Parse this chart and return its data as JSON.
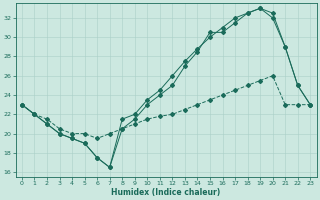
{
  "xlabel": "Humidex (Indice chaleur)",
  "bg_color": "#cce8e0",
  "line_color": "#1a6b5a",
  "xlim": [
    -0.5,
    23.5
  ],
  "ylim": [
    15.5,
    33.5
  ],
  "xticks": [
    0,
    1,
    2,
    3,
    4,
    5,
    6,
    7,
    8,
    9,
    10,
    11,
    12,
    13,
    14,
    15,
    16,
    17,
    18,
    19,
    20,
    21,
    22,
    23
  ],
  "yticks": [
    16,
    18,
    20,
    22,
    24,
    26,
    28,
    30,
    32
  ],
  "line1_x": [
    0,
    1,
    2,
    3,
    4,
    5,
    6,
    7,
    8,
    9,
    10,
    11,
    12,
    13,
    14,
    15,
    16,
    17,
    18,
    19,
    20,
    21,
    22,
    23
  ],
  "line1_y": [
    23.0,
    22.0,
    21.0,
    20.0,
    19.5,
    19.0,
    17.5,
    16.5,
    20.5,
    21.5,
    23.0,
    24.0,
    25.0,
    27.0,
    28.5,
    30.5,
    30.5,
    31.5,
    32.5,
    33.0,
    32.5,
    29.0,
    25.0,
    23.0
  ],
  "line2_x": [
    0,
    1,
    2,
    3,
    4,
    5,
    6,
    7,
    8,
    9,
    10,
    11,
    12,
    13,
    14,
    15,
    16,
    17,
    18,
    19,
    20,
    21,
    22,
    23
  ],
  "line2_y": [
    23.0,
    22.0,
    21.5,
    20.5,
    20.0,
    20.0,
    19.5,
    20.0,
    20.5,
    21.0,
    21.5,
    21.8,
    22.0,
    22.5,
    23.0,
    23.5,
    24.0,
    24.5,
    25.0,
    25.5,
    26.0,
    23.0,
    23.0,
    23.0
  ],
  "line3_x": [
    0,
    1,
    2,
    3,
    4,
    5,
    6,
    7,
    8,
    9,
    10,
    11,
    12,
    13,
    14,
    15,
    16,
    17,
    18,
    19,
    20,
    21,
    22,
    23
  ],
  "line3_y": [
    23.0,
    22.0,
    21.0,
    20.0,
    19.5,
    19.0,
    17.5,
    16.5,
    21.5,
    22.0,
    23.5,
    24.5,
    26.0,
    27.5,
    28.8,
    30.0,
    31.0,
    32.0,
    32.5,
    33.0,
    32.0,
    29.0,
    25.0,
    23.0
  ],
  "grid_color": "#aad0c8",
  "marker": "D",
  "markersize": 2.0,
  "linewidth": 0.7
}
